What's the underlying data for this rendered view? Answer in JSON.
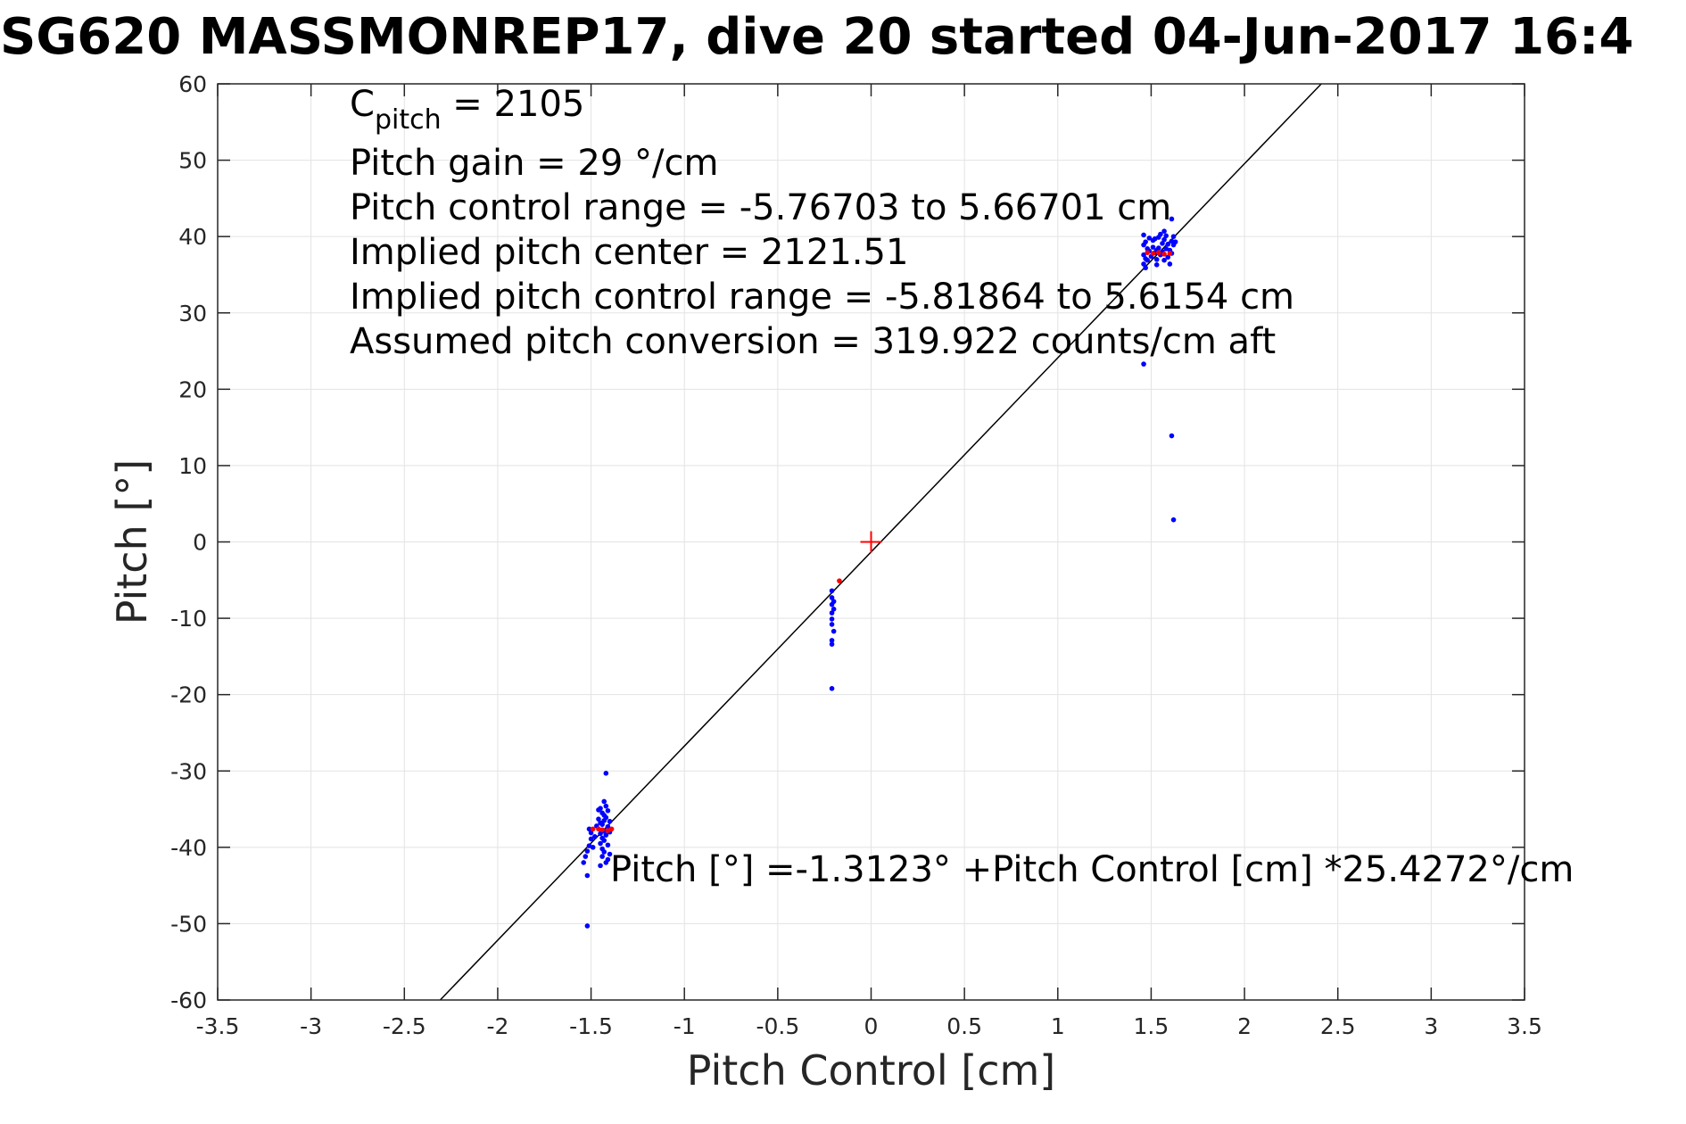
{
  "chart_data": {
    "type": "scatter",
    "title": "SG620 MASSMONREP17, dive 20 started 04-Jun-2017 16:4",
    "xlabel": "Pitch Control [cm]",
    "ylabel": "Pitch [°]",
    "xlim": [
      -3.5,
      3.5
    ],
    "ylim": [
      -60,
      60
    ],
    "xticks": [
      -3.5,
      -3,
      -2.5,
      -2,
      -1.5,
      -1,
      -0.5,
      0,
      0.5,
      1,
      1.5,
      2,
      2.5,
      3,
      3.5
    ],
    "xtick_labels": [
      "-3.5",
      "-3",
      "-2.5",
      "-2",
      "-1.5",
      "-1",
      "-0.5",
      "0",
      "0.5",
      "1",
      "1.5",
      "2",
      "2.5",
      "3",
      "3.5"
    ],
    "yticks": [
      -60,
      -50,
      -40,
      -30,
      -20,
      -10,
      0,
      10,
      20,
      30,
      40,
      50,
      60
    ],
    "ytick_labels": [
      "-60",
      "-50",
      "-40",
      "-30",
      "-20",
      "-10",
      "0",
      "10",
      "20",
      "30",
      "40",
      "50",
      "60"
    ],
    "grid": true,
    "annotations": {
      "c_pitch_base": "C",
      "c_pitch_sub": "pitch",
      "c_pitch_value": " = 2105",
      "lines": [
        "Pitch gain = 29 °/cm",
        "Pitch control range = -5.76703 to 5.66701 cm",
        "Implied pitch center = 2121.51",
        "Implied pitch control range = -5.81864 to 5.6154 cm",
        "Assumed pitch conversion = 319.922 counts/cm aft"
      ],
      "fit_equation": "Pitch [°] =-1.3123° +Pitch Control [cm] *25.4272°/cm"
    },
    "fit": {
      "intercept": -1.3123,
      "slope": 25.4272
    },
    "center_marker": {
      "x": 0,
      "y": 0
    },
    "series": [
      {
        "color": "#0000ff",
        "marker": "point",
        "points": [
          [
            -1.52,
            -50.3
          ],
          [
            -1.52,
            -43.7
          ],
          [
            -1.54,
            -42.0
          ],
          [
            -1.53,
            -41.2
          ],
          [
            -1.52,
            -40.5
          ],
          [
            -1.51,
            -39.8
          ],
          [
            -1.5,
            -38.9
          ],
          [
            -1.5,
            -38.1
          ],
          [
            -1.51,
            -37.6
          ],
          [
            -1.49,
            -40.0
          ],
          [
            -1.48,
            -38.6
          ],
          [
            -1.47,
            -37.2
          ],
          [
            -1.46,
            -36.3
          ],
          [
            -1.46,
            -35.1
          ],
          [
            -1.45,
            -34.9
          ],
          [
            -1.45,
            -36.8
          ],
          [
            -1.45,
            -38.2
          ],
          [
            -1.45,
            -39.5
          ],
          [
            -1.44,
            -37.0
          ],
          [
            -1.44,
            -38.8
          ],
          [
            -1.44,
            -40.2
          ],
          [
            -1.44,
            -41.2
          ],
          [
            -1.43,
            -35.8
          ],
          [
            -1.43,
            -34.0
          ],
          [
            -1.43,
            -36.5
          ],
          [
            -1.43,
            -37.9
          ],
          [
            -1.43,
            -39.1
          ],
          [
            -1.43,
            -40.6
          ],
          [
            -1.42,
            -42.0
          ],
          [
            -1.42,
            -36.1
          ],
          [
            -1.42,
            -38.4
          ],
          [
            -1.42,
            -30.3
          ],
          [
            -1.41,
            -37.3
          ],
          [
            -1.41,
            -39.7
          ],
          [
            -1.41,
            -35.2
          ],
          [
            -1.4,
            -38.0
          ],
          [
            -1.4,
            -40.9
          ],
          [
            -1.4,
            -36.6
          ],
          [
            -1.42,
            -34.6
          ],
          [
            -1.41,
            -41.6
          ],
          [
            -1.44,
            -35.5
          ],
          [
            -1.45,
            -42.4
          ],
          [
            -0.21,
            -6.4
          ],
          [
            -0.21,
            -7.3
          ],
          [
            -0.2,
            -7.8
          ],
          [
            -0.21,
            -8.2
          ],
          [
            -0.2,
            -8.8
          ],
          [
            -0.21,
            -9.3
          ],
          [
            -0.21,
            -10.1
          ],
          [
            -0.21,
            -10.8
          ],
          [
            -0.2,
            -11.7
          ],
          [
            -0.21,
            -12.9
          ],
          [
            -0.21,
            -13.4
          ],
          [
            -0.21,
            -19.2
          ],
          [
            1.46,
            40.2
          ],
          [
            1.46,
            38.9
          ],
          [
            1.46,
            37.6
          ],
          [
            1.46,
            36.4
          ],
          [
            1.47,
            39.3
          ],
          [
            1.47,
            37.1
          ],
          [
            1.48,
            38.4
          ],
          [
            1.48,
            36.9
          ],
          [
            1.49,
            39.8
          ],
          [
            1.49,
            38.1
          ],
          [
            1.5,
            37.4
          ],
          [
            1.51,
            39.5
          ],
          [
            1.51,
            38.6
          ],
          [
            1.52,
            37.9
          ],
          [
            1.52,
            39.7
          ],
          [
            1.53,
            38.2
          ],
          [
            1.53,
            37.0
          ],
          [
            1.54,
            39.9
          ],
          [
            1.54,
            38.5
          ],
          [
            1.55,
            37.6
          ],
          [
            1.55,
            40.3
          ],
          [
            1.56,
            39.1
          ],
          [
            1.56,
            38.0
          ],
          [
            1.57,
            36.9
          ],
          [
            1.57,
            39.6
          ],
          [
            1.58,
            38.4
          ],
          [
            1.58,
            40.1
          ],
          [
            1.59,
            37.3
          ],
          [
            1.59,
            39.0
          ],
          [
            1.6,
            38.2
          ],
          [
            1.6,
            36.4
          ],
          [
            1.61,
            39.4
          ],
          [
            1.61,
            37.8
          ],
          [
            1.61,
            42.3
          ],
          [
            1.62,
            38.9
          ],
          [
            1.62,
            40.0
          ],
          [
            1.47,
            35.9
          ],
          [
            1.53,
            36.3
          ],
          [
            1.57,
            40.7
          ],
          [
            1.63,
            39.3
          ],
          [
            1.46,
            23.3
          ],
          [
            1.61,
            13.9
          ],
          [
            1.62,
            2.9
          ]
        ]
      },
      {
        "color": "#ff0000",
        "marker": "point",
        "points": [
          [
            -1.49,
            -37.6
          ],
          [
            -1.46,
            -37.6
          ],
          [
            -1.44,
            -37.7
          ],
          [
            -1.41,
            -37.8
          ],
          [
            -1.39,
            -37.6
          ],
          [
            -0.17,
            -5.1
          ],
          [
            1.48,
            37.9
          ],
          [
            1.51,
            37.8
          ],
          [
            1.54,
            37.9
          ],
          [
            1.57,
            37.7
          ],
          [
            1.6,
            37.8
          ]
        ]
      }
    ]
  }
}
